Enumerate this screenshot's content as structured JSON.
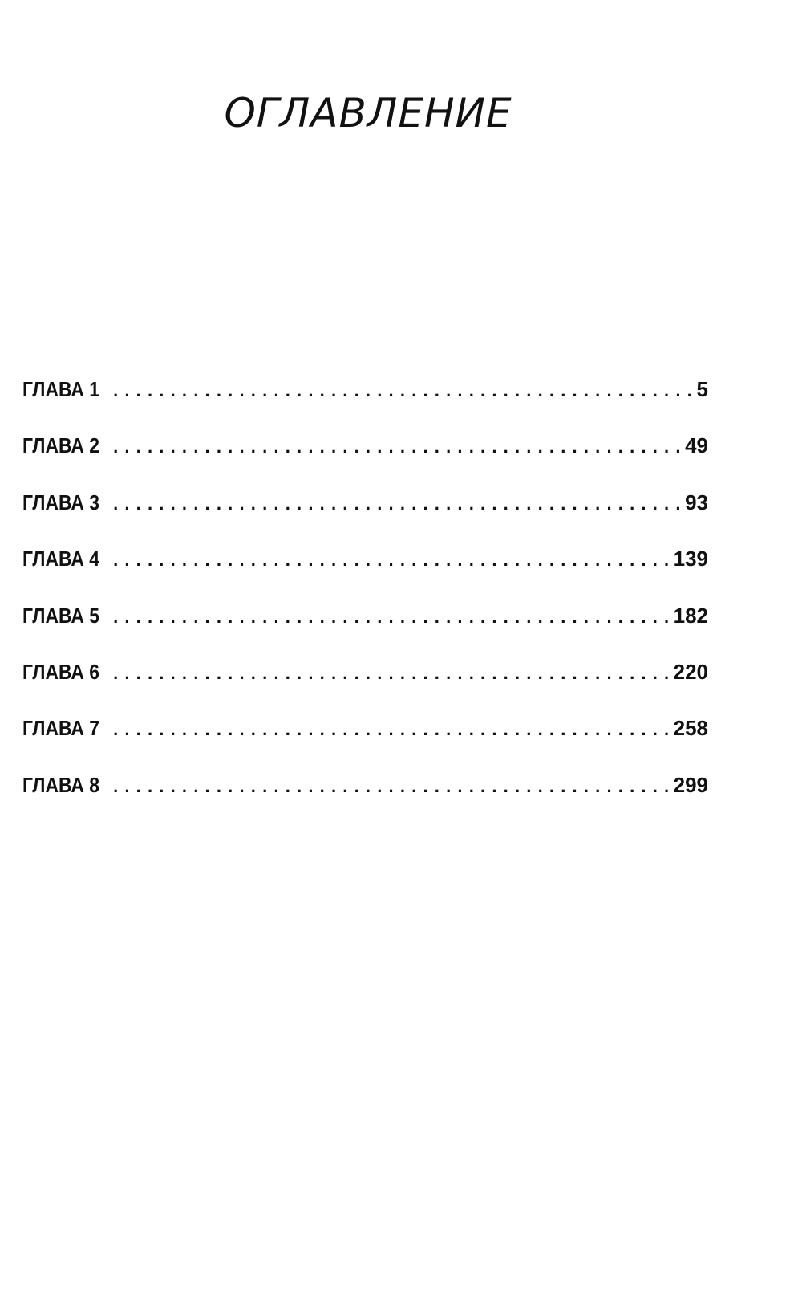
{
  "title": "ОГЛАВЛЕНИЕ",
  "entries": [
    {
      "label": "ГЛАВА 1",
      "page": "5"
    },
    {
      "label": "ГЛАВА 2",
      "page": "49"
    },
    {
      "label": "ГЛАВА 3",
      "page": "93"
    },
    {
      "label": "ГЛАВА 4",
      "page": "139"
    },
    {
      "label": "ГЛАВА 5",
      "page": "182"
    },
    {
      "label": "ГЛАВА 6",
      "page": "220"
    },
    {
      "label": "ГЛАВА 7",
      "page": "258"
    },
    {
      "label": "ГЛАВА 8",
      "page": "299"
    }
  ]
}
